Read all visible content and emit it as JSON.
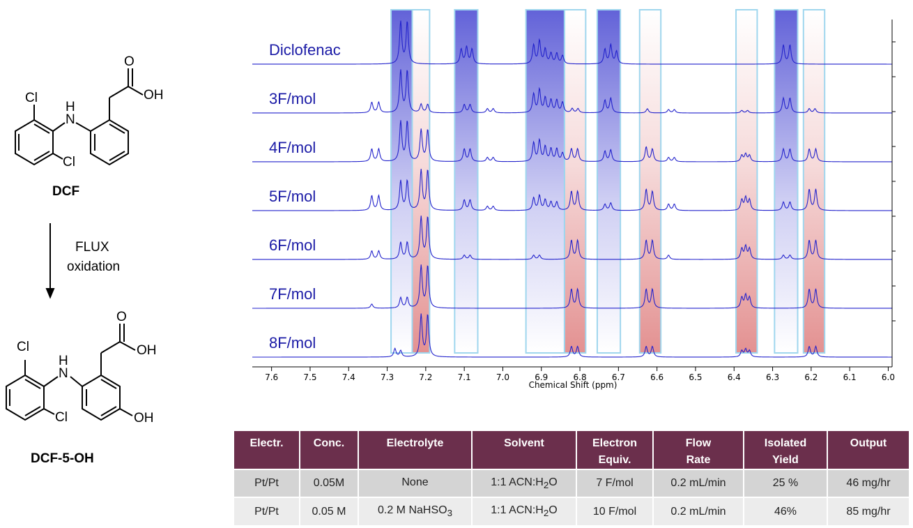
{
  "scheme": {
    "start_name": "DCF",
    "product_name": "DCF-5-OH",
    "arrow_line1": "FLUX",
    "arrow_line2": "oxidation",
    "atoms": {
      "cl": "Cl",
      "oh": "OH",
      "o": "O",
      "h": "H",
      "n": "N"
    }
  },
  "chart_data": {
    "type": "nmr_stacked_line",
    "xlabel": "Chemical Shift (ppm)",
    "xlim": [
      7.65,
      5.99
    ],
    "x_ticks": [
      "7.6",
      "7.5",
      "7.4",
      "7.3",
      "7.2",
      "7.1",
      "7.0",
      "6.9",
      "6.8",
      "6.7",
      "6.6",
      "6.5",
      "6.4",
      "6.3",
      "6.2",
      "6.1",
      "6.0"
    ],
    "x_tick_values": [
      7.6,
      7.5,
      7.4,
      7.3,
      7.2,
      7.1,
      7.0,
      6.9,
      6.8,
      6.7,
      6.6,
      6.5,
      6.4,
      6.3,
      6.2,
      6.1,
      6.0
    ],
    "highlight_regions": [
      {
        "from": 7.29,
        "to": 7.235,
        "trend": "decreasing",
        "color": "#5a5ad6"
      },
      {
        "from": 7.235,
        "to": 7.19,
        "trend": "increasing",
        "color": "#e08585"
      },
      {
        "from": 7.125,
        "to": 7.065,
        "trend": "decreasing",
        "color": "#5a5ad6"
      },
      {
        "from": 6.94,
        "to": 6.84,
        "trend": "decreasing",
        "color": "#5a5ad6"
      },
      {
        "from": 6.84,
        "to": 6.785,
        "trend": "increasing",
        "color": "#e08585"
      },
      {
        "from": 6.755,
        "to": 6.695,
        "trend": "decreasing",
        "color": "#5a5ad6"
      },
      {
        "from": 6.645,
        "to": 6.59,
        "trend": "increasing",
        "color": "#e08585"
      },
      {
        "from": 6.395,
        "to": 6.34,
        "trend": "increasing",
        "color": "#e08585"
      },
      {
        "from": 6.295,
        "to": 6.235,
        "trend": "decreasing",
        "color": "#5a5ad6"
      },
      {
        "from": 6.22,
        "to": 6.165,
        "trend": "increasing",
        "color": "#e08585"
      }
    ],
    "series": [
      {
        "name": "Diclofenac",
        "peaks": [
          [
            7.265,
            1.0
          ],
          [
            7.248,
            1.0
          ],
          [
            7.108,
            0.35
          ],
          [
            7.094,
            0.4
          ],
          [
            7.08,
            0.35
          ],
          [
            6.92,
            0.45
          ],
          [
            6.905,
            0.55
          ],
          [
            6.89,
            0.35
          ],
          [
            6.875,
            0.25
          ],
          [
            6.86,
            0.25
          ],
          [
            6.845,
            0.2
          ],
          [
            6.735,
            0.35
          ],
          [
            6.72,
            0.45
          ],
          [
            6.705,
            0.3
          ],
          [
            6.272,
            0.45
          ],
          [
            6.255,
            0.45
          ]
        ]
      },
      {
        "name": "3F/mol",
        "peaks": [
          [
            7.265,
            1.0
          ],
          [
            7.248,
            1.0
          ],
          [
            7.34,
            0.25
          ],
          [
            7.322,
            0.25
          ],
          [
            7.212,
            0.2
          ],
          [
            7.195,
            0.2
          ],
          [
            7.1,
            0.2
          ],
          [
            7.085,
            0.2
          ],
          [
            7.04,
            0.1
          ],
          [
            7.025,
            0.1
          ],
          [
            6.92,
            0.45
          ],
          [
            6.905,
            0.55
          ],
          [
            6.89,
            0.35
          ],
          [
            6.875,
            0.3
          ],
          [
            6.86,
            0.3
          ],
          [
            6.845,
            0.25
          ],
          [
            6.82,
            0.1
          ],
          [
            6.805,
            0.1
          ],
          [
            6.735,
            0.3
          ],
          [
            6.72,
            0.35
          ],
          [
            6.625,
            0.1
          ],
          [
            6.57,
            0.08
          ],
          [
            6.555,
            0.08
          ],
          [
            6.38,
            0.06
          ],
          [
            6.365,
            0.06
          ],
          [
            6.272,
            0.35
          ],
          [
            6.255,
            0.35
          ],
          [
            6.205,
            0.1
          ],
          [
            6.19,
            0.1
          ]
        ]
      },
      {
        "name": "4F/mol",
        "peaks": [
          [
            7.265,
            0.95
          ],
          [
            7.248,
            0.95
          ],
          [
            7.34,
            0.3
          ],
          [
            7.322,
            0.3
          ],
          [
            7.212,
            0.75
          ],
          [
            7.195,
            0.75
          ],
          [
            7.1,
            0.3
          ],
          [
            7.085,
            0.3
          ],
          [
            7.04,
            0.1
          ],
          [
            7.025,
            0.1
          ],
          [
            6.92,
            0.45
          ],
          [
            6.905,
            0.5
          ],
          [
            6.89,
            0.35
          ],
          [
            6.875,
            0.3
          ],
          [
            6.86,
            0.3
          ],
          [
            6.845,
            0.2
          ],
          [
            6.822,
            0.3
          ],
          [
            6.806,
            0.3
          ],
          [
            6.735,
            0.25
          ],
          [
            6.72,
            0.28
          ],
          [
            6.628,
            0.35
          ],
          [
            6.612,
            0.3
          ],
          [
            6.57,
            0.1
          ],
          [
            6.555,
            0.1
          ],
          [
            6.38,
            0.15
          ],
          [
            6.37,
            0.18
          ],
          [
            6.36,
            0.15
          ],
          [
            6.272,
            0.3
          ],
          [
            6.255,
            0.3
          ],
          [
            6.205,
            0.3
          ],
          [
            6.188,
            0.3
          ]
        ]
      },
      {
        "name": "5F/mol",
        "peaks": [
          [
            7.265,
            0.7
          ],
          [
            7.248,
            0.7
          ],
          [
            7.34,
            0.35
          ],
          [
            7.322,
            0.35
          ],
          [
            7.212,
            0.95
          ],
          [
            7.195,
            0.95
          ],
          [
            7.1,
            0.25
          ],
          [
            7.085,
            0.25
          ],
          [
            7.04,
            0.1
          ],
          [
            7.025,
            0.1
          ],
          [
            6.92,
            0.3
          ],
          [
            6.905,
            0.35
          ],
          [
            6.89,
            0.25
          ],
          [
            6.875,
            0.2
          ],
          [
            6.86,
            0.2
          ],
          [
            6.822,
            0.45
          ],
          [
            6.806,
            0.45
          ],
          [
            6.735,
            0.15
          ],
          [
            6.72,
            0.18
          ],
          [
            6.628,
            0.5
          ],
          [
            6.612,
            0.45
          ],
          [
            6.57,
            0.15
          ],
          [
            6.555,
            0.15
          ],
          [
            6.38,
            0.25
          ],
          [
            6.37,
            0.3
          ],
          [
            6.36,
            0.25
          ],
          [
            6.272,
            0.2
          ],
          [
            6.255,
            0.2
          ],
          [
            6.205,
            0.5
          ],
          [
            6.188,
            0.5
          ]
        ]
      },
      {
        "name": "6F/mol",
        "peaks": [
          [
            7.265,
            0.4
          ],
          [
            7.248,
            0.4
          ],
          [
            7.34,
            0.2
          ],
          [
            7.322,
            0.2
          ],
          [
            7.212,
            1.0
          ],
          [
            7.195,
            1.0
          ],
          [
            7.1,
            0.1
          ],
          [
            7.085,
            0.1
          ],
          [
            6.92,
            0.1
          ],
          [
            6.905,
            0.1
          ],
          [
            6.822,
            0.45
          ],
          [
            6.806,
            0.45
          ],
          [
            6.628,
            0.45
          ],
          [
            6.612,
            0.45
          ],
          [
            6.57,
            0.1
          ],
          [
            6.38,
            0.25
          ],
          [
            6.37,
            0.3
          ],
          [
            6.36,
            0.25
          ],
          [
            6.272,
            0.1
          ],
          [
            6.255,
            0.1
          ],
          [
            6.205,
            0.45
          ],
          [
            6.188,
            0.45
          ]
        ]
      },
      {
        "name": "7F/mol",
        "peaks": [
          [
            7.265,
            0.25
          ],
          [
            7.248,
            0.25
          ],
          [
            7.34,
            0.1
          ],
          [
            7.212,
            1.0
          ],
          [
            7.195,
            1.0
          ],
          [
            6.822,
            0.45
          ],
          [
            6.806,
            0.45
          ],
          [
            6.628,
            0.45
          ],
          [
            6.612,
            0.45
          ],
          [
            6.38,
            0.25
          ],
          [
            6.37,
            0.3
          ],
          [
            6.36,
            0.25
          ],
          [
            6.205,
            0.45
          ],
          [
            6.188,
            0.45
          ]
        ]
      },
      {
        "name": "8F/mol",
        "peaks": [
          [
            7.28,
            0.2
          ],
          [
            7.265,
            0.15
          ],
          [
            7.212,
            1.0
          ],
          [
            7.195,
            1.0
          ],
          [
            6.822,
            0.25
          ],
          [
            6.806,
            0.25
          ],
          [
            6.628,
            0.25
          ],
          [
            6.612,
            0.25
          ],
          [
            6.38,
            0.15
          ],
          [
            6.37,
            0.18
          ],
          [
            6.36,
            0.15
          ],
          [
            6.205,
            0.25
          ],
          [
            6.188,
            0.25
          ]
        ]
      }
    ]
  },
  "table": {
    "headers": [
      {
        "l1": "Electr.",
        "l2": ""
      },
      {
        "l1": "Conc.",
        "l2": ""
      },
      {
        "l1": "Electrolyte",
        "l2": ""
      },
      {
        "l1": "Solvent",
        "l2": ""
      },
      {
        "l1": "Electron",
        "l2": "Equiv."
      },
      {
        "l1": "Flow",
        "l2": "Rate"
      },
      {
        "l1": "Isolated",
        "l2": "Yield"
      },
      {
        "l1": "Output",
        "l2": ""
      }
    ],
    "rows": [
      {
        "electr": "Pt/Pt",
        "conc": "0.05M",
        "electrolyte_main": "None",
        "electrolyte_sub": "",
        "solvent_pre": "1:1 ACN:H",
        "solvent_sub": "2",
        "solvent_post": "O",
        "equiv": "7 F/mol",
        "flow": "0.2 mL/min",
        "yield": "25 %",
        "output": "46 mg/hr"
      },
      {
        "electr": "Pt/Pt",
        "conc": "0.05 M",
        "electrolyte_main": "0.2 M NaHSO",
        "electrolyte_sub": "3",
        "solvent_pre": "1:1 ACN:H",
        "solvent_sub": "2",
        "solvent_post": "O",
        "equiv": "10 F/mol",
        "flow": "0.2 mL/min",
        "yield": "46%",
        "output": "85 mg/hr"
      }
    ]
  }
}
